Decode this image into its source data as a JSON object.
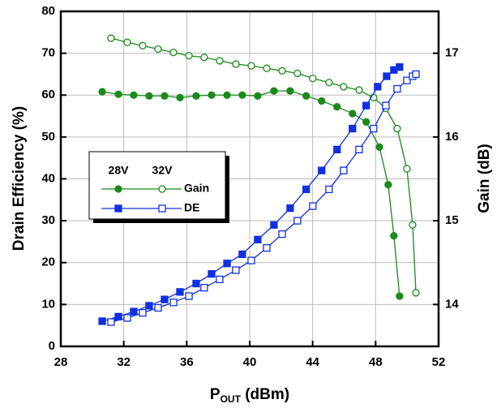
{
  "chart_data": {
    "type": "line",
    "xlabel": {
      "main": "P",
      "sub": "OUT",
      "rest": " (dBm)"
    },
    "ylabel": "Drain Efficiency (%)",
    "y2label": "Gain (dB)",
    "xlim": [
      28,
      52
    ],
    "xticks": [
      28,
      32,
      36,
      40,
      44,
      48,
      52
    ],
    "ylim": [
      0,
      80
    ],
    "yticks": [
      0,
      10,
      20,
      30,
      40,
      50,
      60,
      70,
      80
    ],
    "y2lim": [
      13.5,
      17.5
    ],
    "y2ticks": [
      14,
      15,
      16,
      17
    ],
    "grid": true,
    "legend": {
      "columns": [
        "28V",
        "32V"
      ],
      "rows": [
        "Gain",
        "DE"
      ]
    },
    "series": [
      {
        "legend_row": 0,
        "legend_column": 0,
        "color": "#1a8a1a",
        "marker": "circle",
        "filled": true,
        "axis": "y2",
        "x": [
          30.63,
          31.66,
          32.63,
          33.61,
          34.59,
          35.57,
          36.6,
          37.58,
          38.56,
          39.53,
          40.51,
          41.54,
          42.57,
          43.59,
          44.57,
          45.55,
          46.53,
          47.4,
          48.24,
          48.8,
          49.16,
          49.52
        ],
        "values": [
          16.54,
          16.51,
          16.5,
          16.49,
          16.49,
          16.47,
          16.49,
          16.5,
          16.5,
          16.5,
          16.49,
          16.55,
          16.55,
          16.49,
          16.43,
          16.36,
          16.28,
          16.18,
          15.88,
          15.43,
          14.82,
          14.1
        ]
      },
      {
        "legend_row": 0,
        "legend_column": 1,
        "color": "#1a8a1a",
        "marker": "circle",
        "filled": false,
        "axis": "y2",
        "x": [
          31.19,
          32.22,
          33.2,
          34.18,
          35.16,
          36.14,
          37.11,
          38.09,
          39.12,
          40.1,
          41.08,
          42.06,
          43.03,
          44.01,
          45.04,
          45.97,
          46.95,
          47.87,
          48.65,
          49.37,
          49.99,
          50.35,
          50.56
        ],
        "values": [
          17.18,
          17.13,
          17.09,
          17.05,
          17.01,
          16.97,
          16.95,
          16.91,
          16.87,
          16.85,
          16.82,
          16.79,
          16.76,
          16.7,
          16.65,
          16.6,
          16.56,
          16.47,
          16.34,
          16.1,
          15.62,
          14.95,
          14.14
        ]
      },
      {
        "legend_row": 1,
        "legend_column": 0,
        "color": "#1030e0",
        "marker": "square",
        "filled": true,
        "axis": "y",
        "x": [
          30.63,
          31.66,
          32.63,
          33.61,
          34.59,
          35.57,
          36.6,
          37.58,
          38.56,
          39.53,
          40.51,
          41.54,
          42.57,
          43.59,
          44.57,
          45.55,
          46.53,
          47.4,
          48.13,
          48.7,
          49.16,
          49.52
        ],
        "values": [
          6.0,
          7.1,
          8.3,
          9.7,
          11.2,
          13.0,
          15.0,
          17.3,
          19.8,
          22.0,
          25.5,
          29.0,
          33.0,
          37.5,
          42.0,
          47.0,
          52.0,
          57.5,
          62.0,
          64.5,
          66.0,
          66.7
        ]
      },
      {
        "legend_row": 1,
        "legend_column": 1,
        "color": "#1030e0",
        "marker": "square",
        "filled": false,
        "axis": "y",
        "x": [
          31.19,
          32.22,
          33.2,
          34.18,
          35.16,
          36.14,
          37.11,
          38.09,
          39.12,
          40.1,
          41.08,
          42.06,
          43.03,
          44.01,
          45.04,
          45.97,
          46.95,
          47.87,
          48.65,
          49.37,
          49.99,
          50.35,
          50.56
        ],
        "values": [
          5.8,
          6.8,
          8.0,
          9.2,
          10.5,
          12.0,
          14.0,
          16.0,
          18.2,
          20.5,
          23.5,
          26.8,
          30.0,
          33.5,
          37.5,
          42.0,
          47.0,
          52.0,
          57.5,
          61.5,
          63.5,
          64.5,
          65.0
        ]
      }
    ]
  }
}
